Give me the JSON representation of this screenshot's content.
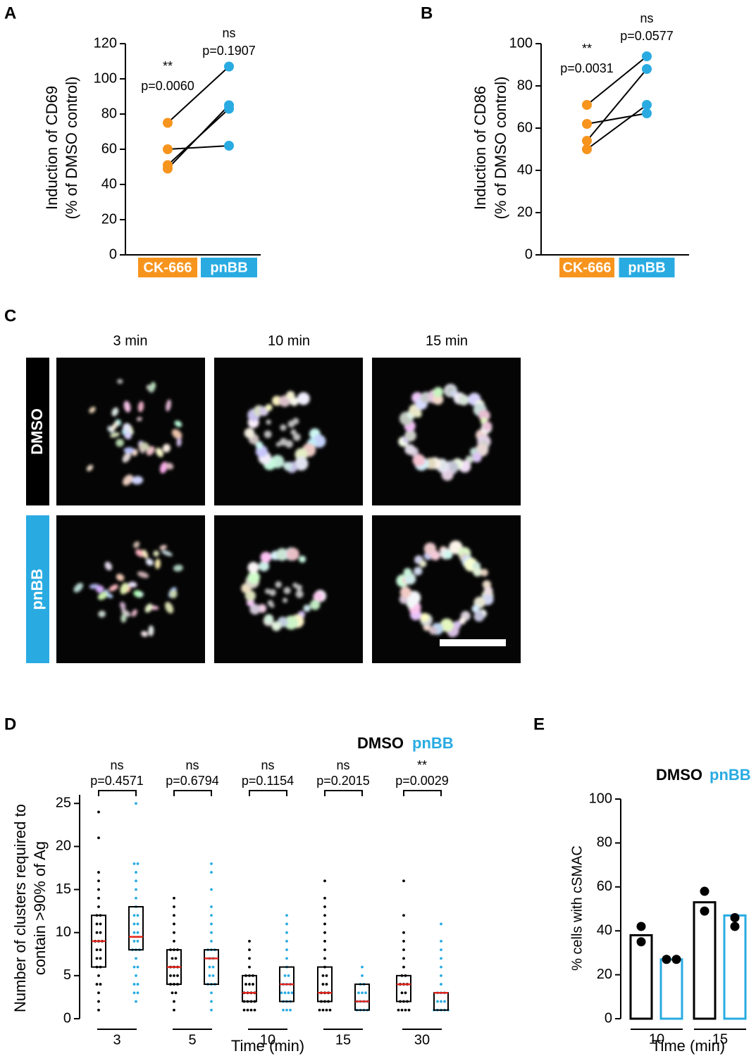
{
  "chart_data": [
    {
      "panel_label": "A",
      "type": "paired",
      "ylabel": [
        "Induction of CD69",
        "(% of DMSO control)"
      ],
      "ylim": [
        0,
        120
      ],
      "yticks": [
        0,
        20,
        40,
        60,
        80,
        100,
        120
      ],
      "series": [
        {
          "name": "CK-666",
          "color": "#f7941d",
          "values": [
            75,
            60,
            51,
            49
          ],
          "annotation": [
            "**",
            "p=0.0060"
          ]
        },
        {
          "name": "pnBB",
          "color": "#29abe2",
          "values": [
            107,
            62,
            83,
            85
          ],
          "annotation": [
            "ns",
            "p=0.1907"
          ]
        }
      ]
    },
    {
      "panel_label": "B",
      "type": "paired",
      "ylabel": [
        "Induction of CD86",
        "(% of DMSO control)"
      ],
      "ylim": [
        0,
        100
      ],
      "yticks": [
        0,
        20,
        40,
        60,
        80,
        100
      ],
      "series": [
        {
          "name": "CK-666",
          "color": "#f7941d",
          "values": [
            71,
            62,
            54,
            50
          ],
          "annotation": [
            "**",
            "p=0.0031"
          ]
        },
        {
          "name": "pnBB",
          "color": "#29abe2",
          "values": [
            94,
            67,
            88,
            71
          ],
          "annotation": [
            "ns",
            "p=0.0577"
          ]
        }
      ]
    },
    {
      "panel_label": "D",
      "type": "dot_box",
      "ylabel": [
        "Number of clusters required to",
        "contain >90% of Ag"
      ],
      "xlabel": "Time (min)",
      "categories": [
        "3",
        "5",
        "10",
        "15",
        "30"
      ],
      "ylim": [
        0,
        26
      ],
      "yticks": [
        0,
        5,
        10,
        15,
        20,
        25
      ],
      "annotations": [
        [
          "ns",
          "p=0.4571"
        ],
        [
          "ns",
          "p=0.6794"
        ],
        [
          "ns",
          "p=0.1154"
        ],
        [
          "ns",
          "p=0.2015"
        ],
        [
          "**",
          "p=0.0029"
        ]
      ],
      "series": [
        {
          "name": "DMSO",
          "color": "#000000",
          "values": [
            [
              1,
              2,
              3,
              4,
              4,
              5,
              6,
              6,
              7,
              7,
              8,
              8,
              9,
              9,
              9,
              10,
              10,
              11,
              11,
              12,
              12,
              13,
              14,
              15,
              16,
              17,
              21,
              24
            ],
            [
              1,
              2,
              3,
              3,
              4,
              4,
              4,
              5,
              5,
              5,
              6,
              6,
              6,
              7,
              7,
              8,
              8,
              8,
              9,
              10,
              11,
              12,
              13,
              14
            ],
            [
              1,
              1,
              1,
              1,
              2,
              2,
              2,
              2,
              3,
              3,
              3,
              3,
              4,
              4,
              4,
              5,
              5,
              5,
              6,
              7,
              8,
              9
            ],
            [
              1,
              1,
              1,
              1,
              2,
              2,
              2,
              3,
              3,
              3,
              4,
              4,
              5,
              5,
              6,
              7,
              8,
              9,
              10,
              11,
              12,
              13,
              14,
              16
            ],
            [
              1,
              1,
              1,
              1,
              2,
              2,
              2,
              3,
              3,
              4,
              4,
              4,
              5,
              5,
              6,
              7,
              8,
              9,
              10,
              12,
              16
            ]
          ],
          "box": [
            [
              6,
              9,
              12
            ],
            [
              4,
              6,
              8
            ],
            [
              2,
              3,
              5
            ],
            [
              2,
              3,
              6
            ],
            [
              2,
              4,
              5
            ]
          ]
        },
        {
          "name": "pnBB",
          "color": "#29abe2",
          "values": [
            [
              2,
              3,
              3,
              4,
              4,
              5,
              6,
              6,
              7,
              8,
              8,
              8,
              9,
              9,
              10,
              10,
              11,
              11,
              12,
              12,
              13,
              14,
              15,
              16,
              17,
              18,
              18,
              25
            ],
            [
              1,
              2,
              3,
              4,
              4,
              4,
              5,
              5,
              6,
              6,
              7,
              7,
              8,
              8,
              8,
              9,
              10,
              11,
              12,
              13,
              15,
              17,
              18
            ],
            [
              1,
              1,
              1,
              2,
              2,
              2,
              3,
              3,
              3,
              3,
              4,
              4,
              4,
              5,
              5,
              6,
              7,
              8,
              9,
              10,
              11,
              12
            ],
            [
              1,
              1,
              1,
              1,
              2,
              2,
              2,
              2,
              3,
              3,
              3,
              4,
              4,
              5,
              6
            ],
            [
              1,
              1,
              1,
              1,
              1,
              2,
              2,
              2,
              3,
              3,
              3,
              4,
              5,
              6,
              7,
              8,
              9,
              11
            ]
          ],
          "box": [
            [
              8,
              9.5,
              13
            ],
            [
              4,
              7,
              8
            ],
            [
              2,
              4,
              6
            ],
            [
              1,
              2,
              4
            ],
            [
              1,
              3,
              3
            ]
          ]
        }
      ]
    },
    {
      "panel_label": "E",
      "type": "bar",
      "ylabel": "% cells with cSMAC",
      "xlabel": "Time (min)",
      "categories": [
        "10",
        "15"
      ],
      "ylim": [
        0,
        100
      ],
      "yticks": [
        0,
        20,
        40,
        60,
        80,
        100
      ],
      "series": [
        {
          "name": "DMSO",
          "color": "#000000",
          "values": [
            38,
            53
          ],
          "points": [
            [
              42,
              35
            ],
            [
              58,
              49
            ]
          ]
        },
        {
          "name": "pnBB",
          "color": "#29abe2",
          "values": [
            27,
            47
          ],
          "points": [
            [
              27,
              27
            ],
            [
              46,
              42
            ]
          ]
        }
      ]
    }
  ],
  "image_panel": {
    "panel_label": "C",
    "columns": [
      "3 min",
      "10 min",
      "15 min"
    ],
    "rows": [
      "DMSO",
      "pnBB"
    ]
  }
}
